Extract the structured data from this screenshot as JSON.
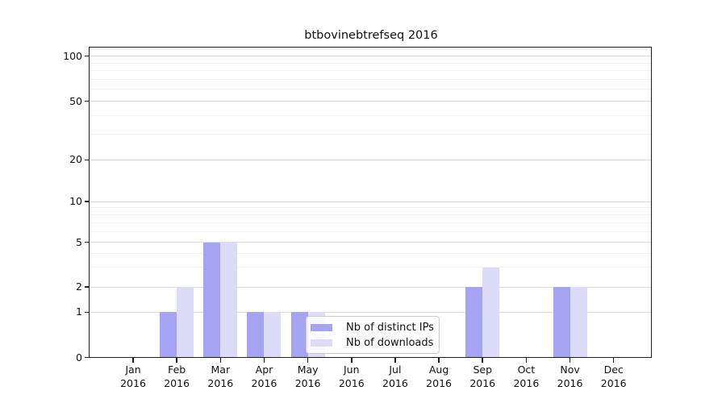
{
  "figure": {
    "background": "#ffffff"
  },
  "chart_data": {
    "type": "bar",
    "title": "btbovinebtrefseq 2016",
    "x_axis": {
      "categories": [
        "Jan 2016",
        "Feb 2016",
        "Mar 2016",
        "Apr 2016",
        "May 2016",
        "Jun 2016",
        "Jul 2016",
        "Aug 2016",
        "Sep 2016",
        "Oct 2016",
        "Nov 2016",
        "Dec 2016"
      ]
    },
    "y_axis": {
      "scale": "symlog",
      "major_ticks": [
        0,
        1,
        2,
        5,
        10,
        20,
        50,
        100
      ],
      "minor_ticks": [
        3,
        4,
        6,
        7,
        8,
        9,
        30,
        40,
        60,
        70,
        80,
        90
      ],
      "range": [
        0,
        100
      ]
    },
    "series": [
      {
        "name": "Nb of distinct IPs",
        "color": "#a4a4f2",
        "values": [
          0,
          1,
          5,
          1,
          1,
          0,
          0,
          0,
          2,
          0,
          2,
          0
        ]
      },
      {
        "name": "Nb of downloads",
        "color": "#dcdcf8",
        "values": [
          0,
          2,
          5,
          1,
          1,
          0,
          0,
          0,
          3,
          0,
          2,
          0
        ]
      }
    ],
    "legend": {
      "position": "inside-bottom-center",
      "items": [
        "Nb of distinct IPs",
        "Nb of downloads"
      ]
    },
    "grid": {
      "major_color": "#dcdcdc",
      "minor_color": "#f0f0f0"
    },
    "axis_color": "#1c1c1c"
  }
}
